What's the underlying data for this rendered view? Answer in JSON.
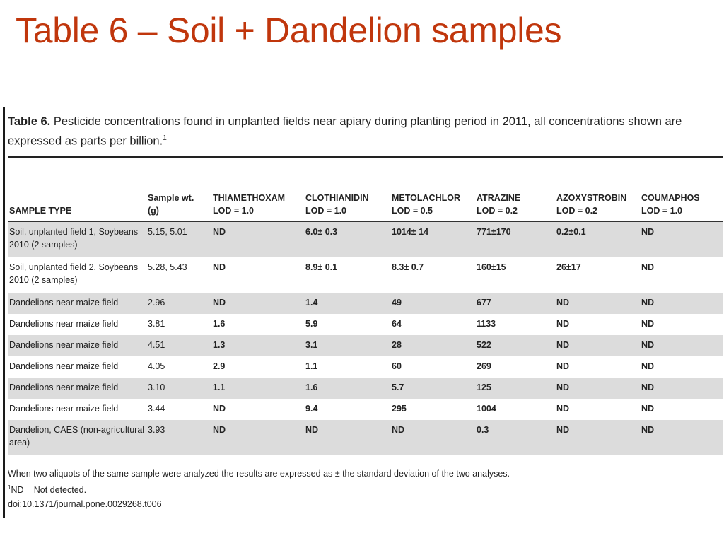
{
  "slide": {
    "title": "Table 6 – Soil + Dandelion samples"
  },
  "table": {
    "caption_label": "Table 6.",
    "caption_text": "Pesticide concentrations found in unplanted fields near apiary during planting period in 2011, all concentrations shown are expressed as parts per billion.",
    "caption_footnote_mark": "1",
    "headers": [
      {
        "name": "SAMPLE TYPE",
        "lod": ""
      },
      {
        "name": "Sample wt.",
        "lod": "(g)"
      },
      {
        "name": "THIAMETHOXAM",
        "lod": "LOD = 1.0"
      },
      {
        "name": "CLOTHIANIDIN",
        "lod": "LOD = 1.0"
      },
      {
        "name": "METOLACHLOR",
        "lod": "LOD = 0.5"
      },
      {
        "name": "ATRAZINE",
        "lod": "LOD = 0.2"
      },
      {
        "name": "AZOXYSTROBIN",
        "lod": "LOD = 0.2"
      },
      {
        "name": "COUMAPHOS",
        "lod": "LOD = 1.0"
      }
    ],
    "rows": [
      {
        "sample_type": "Soil, unplanted field 1, Soybeans 2010 (2 samples)",
        "wt": "5.15, 5.01",
        "thiamethoxam": "ND",
        "clothianidin": "6.0± 0.3",
        "metolachlor": "1014± 14",
        "atrazine": "771±170",
        "azoxystrobin": "0.2±0.1",
        "coumaphos": "ND"
      },
      {
        "sample_type": "Soil, unplanted field 2, Soybeans 2010 (2 samples)",
        "wt": "5.28, 5.43",
        "thiamethoxam": "ND",
        "clothianidin": "8.9± 0.1",
        "metolachlor": "8.3± 0.7",
        "atrazine": "160±15",
        "azoxystrobin": "26±17",
        "coumaphos": "ND"
      },
      {
        "sample_type": "Dandelions near maize field",
        "wt": "2.96",
        "thiamethoxam": "ND",
        "clothianidin": "1.4",
        "metolachlor": "49",
        "atrazine": "677",
        "azoxystrobin": "ND",
        "coumaphos": "ND"
      },
      {
        "sample_type": "Dandelions near maize field",
        "wt": "3.81",
        "thiamethoxam": "1.6",
        "clothianidin": "5.9",
        "metolachlor": "64",
        "atrazine": "1133",
        "azoxystrobin": "ND",
        "coumaphos": "ND"
      },
      {
        "sample_type": "Dandelions near maize field",
        "wt": "4.51",
        "thiamethoxam": "1.3",
        "clothianidin": "3.1",
        "metolachlor": "28",
        "atrazine": "522",
        "azoxystrobin": "ND",
        "coumaphos": "ND"
      },
      {
        "sample_type": "Dandelions near maize field",
        "wt": "4.05",
        "thiamethoxam": "2.9",
        "clothianidin": "1.1",
        "metolachlor": "60",
        "atrazine": "269",
        "azoxystrobin": "ND",
        "coumaphos": "ND"
      },
      {
        "sample_type": "Dandelions near maize field",
        "wt": "3.10",
        "thiamethoxam": "1.1",
        "clothianidin": "1.6",
        "metolachlor": "5.7",
        "atrazine": "125",
        "azoxystrobin": "ND",
        "coumaphos": "ND"
      },
      {
        "sample_type": "Dandelions near maize field",
        "wt": "3.44",
        "thiamethoxam": "ND",
        "clothianidin": "9.4",
        "metolachlor": "295",
        "atrazine": "1004",
        "azoxystrobin": "ND",
        "coumaphos": "ND"
      },
      {
        "sample_type": "Dandelion, CAES (non-agricultural area)",
        "wt": "3.93",
        "thiamethoxam": "ND",
        "clothianidin": "ND",
        "metolachlor": "ND",
        "atrazine": "0.3",
        "azoxystrobin": "ND",
        "coumaphos": "ND"
      }
    ],
    "notes": {
      "line1": "When two aliquots of the same sample were analyzed the results are expressed as ± the standard deviation of the two analyses.",
      "line2_mark": "1",
      "line2": "ND = Not detected.",
      "doi": "doi:10.1371/journal.pone.0029268.t006"
    }
  },
  "colors": {
    "title": "#c0360c",
    "row_shade": "#dcdcdc"
  }
}
